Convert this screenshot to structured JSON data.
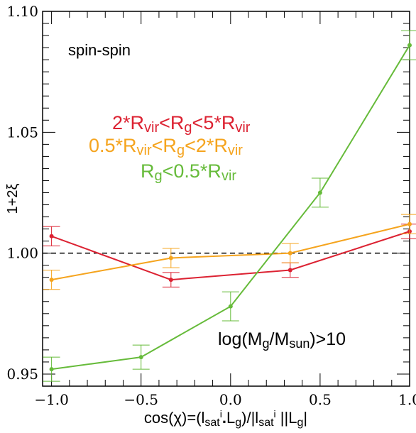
{
  "chart_data": {
    "type": "line",
    "title": "",
    "xlabel": "cos(χ)=(lsatⁱ·Lg)/|lsatⁱ||Lg|",
    "ylabel": "1+2ξ",
    "xlim": [
      -1.05,
      1.0
    ],
    "ylim": [
      0.945,
      1.1
    ],
    "grid": false,
    "x_ticks": [
      "−1.0",
      "−0.5",
      "0.0",
      "0.5",
      "1.0"
    ],
    "y_ticks": [
      "0.95",
      "1.00",
      "1.05",
      "1.10"
    ],
    "reference_line": {
      "y": 1.0,
      "style": "dashed",
      "color": "#000000"
    },
    "annotations": {
      "top_left": "spin-spin",
      "bottom_right": "log(Mg/Msun)>10"
    },
    "legend": {
      "placement": "center-top",
      "entries": [
        {
          "text": "2*Rvir<Rg<5*Rvir",
          "color": "#dc2232"
        },
        {
          "text": "0.5*Rvir<Rg<2*Rvir",
          "color": "#f5a41e"
        },
        {
          "text": "Rg<0.5*Rvir",
          "color": "#66bb3a"
        }
      ]
    },
    "series": [
      {
        "name": "2*Rvir<Rg<5*Rvir",
        "color": "#dc2232",
        "x": [
          -1.0,
          -0.333,
          0.333,
          1.0
        ],
        "y": [
          1.007,
          0.989,
          0.993,
          1.009
        ],
        "err": [
          0.004,
          0.003,
          0.003,
          0.003
        ]
      },
      {
        "name": "0.5*Rvir<Rg<2*Rvir",
        "color": "#f5a41e",
        "x": [
          -1.0,
          -0.333,
          0.333,
          1.0
        ],
        "y": [
          0.989,
          0.998,
          1.0,
          1.012
        ],
        "err": [
          0.004,
          0.004,
          0.004,
          0.004
        ]
      },
      {
        "name": "Rg<0.5*Rvir",
        "color": "#66bb3a",
        "x": [
          -1.0,
          -0.5,
          0.0,
          0.5,
          1.0
        ],
        "y": [
          0.952,
          0.957,
          0.978,
          1.025,
          1.086
        ],
        "err": [
          0.005,
          0.005,
          0.006,
          0.006,
          0.006
        ]
      }
    ]
  }
}
